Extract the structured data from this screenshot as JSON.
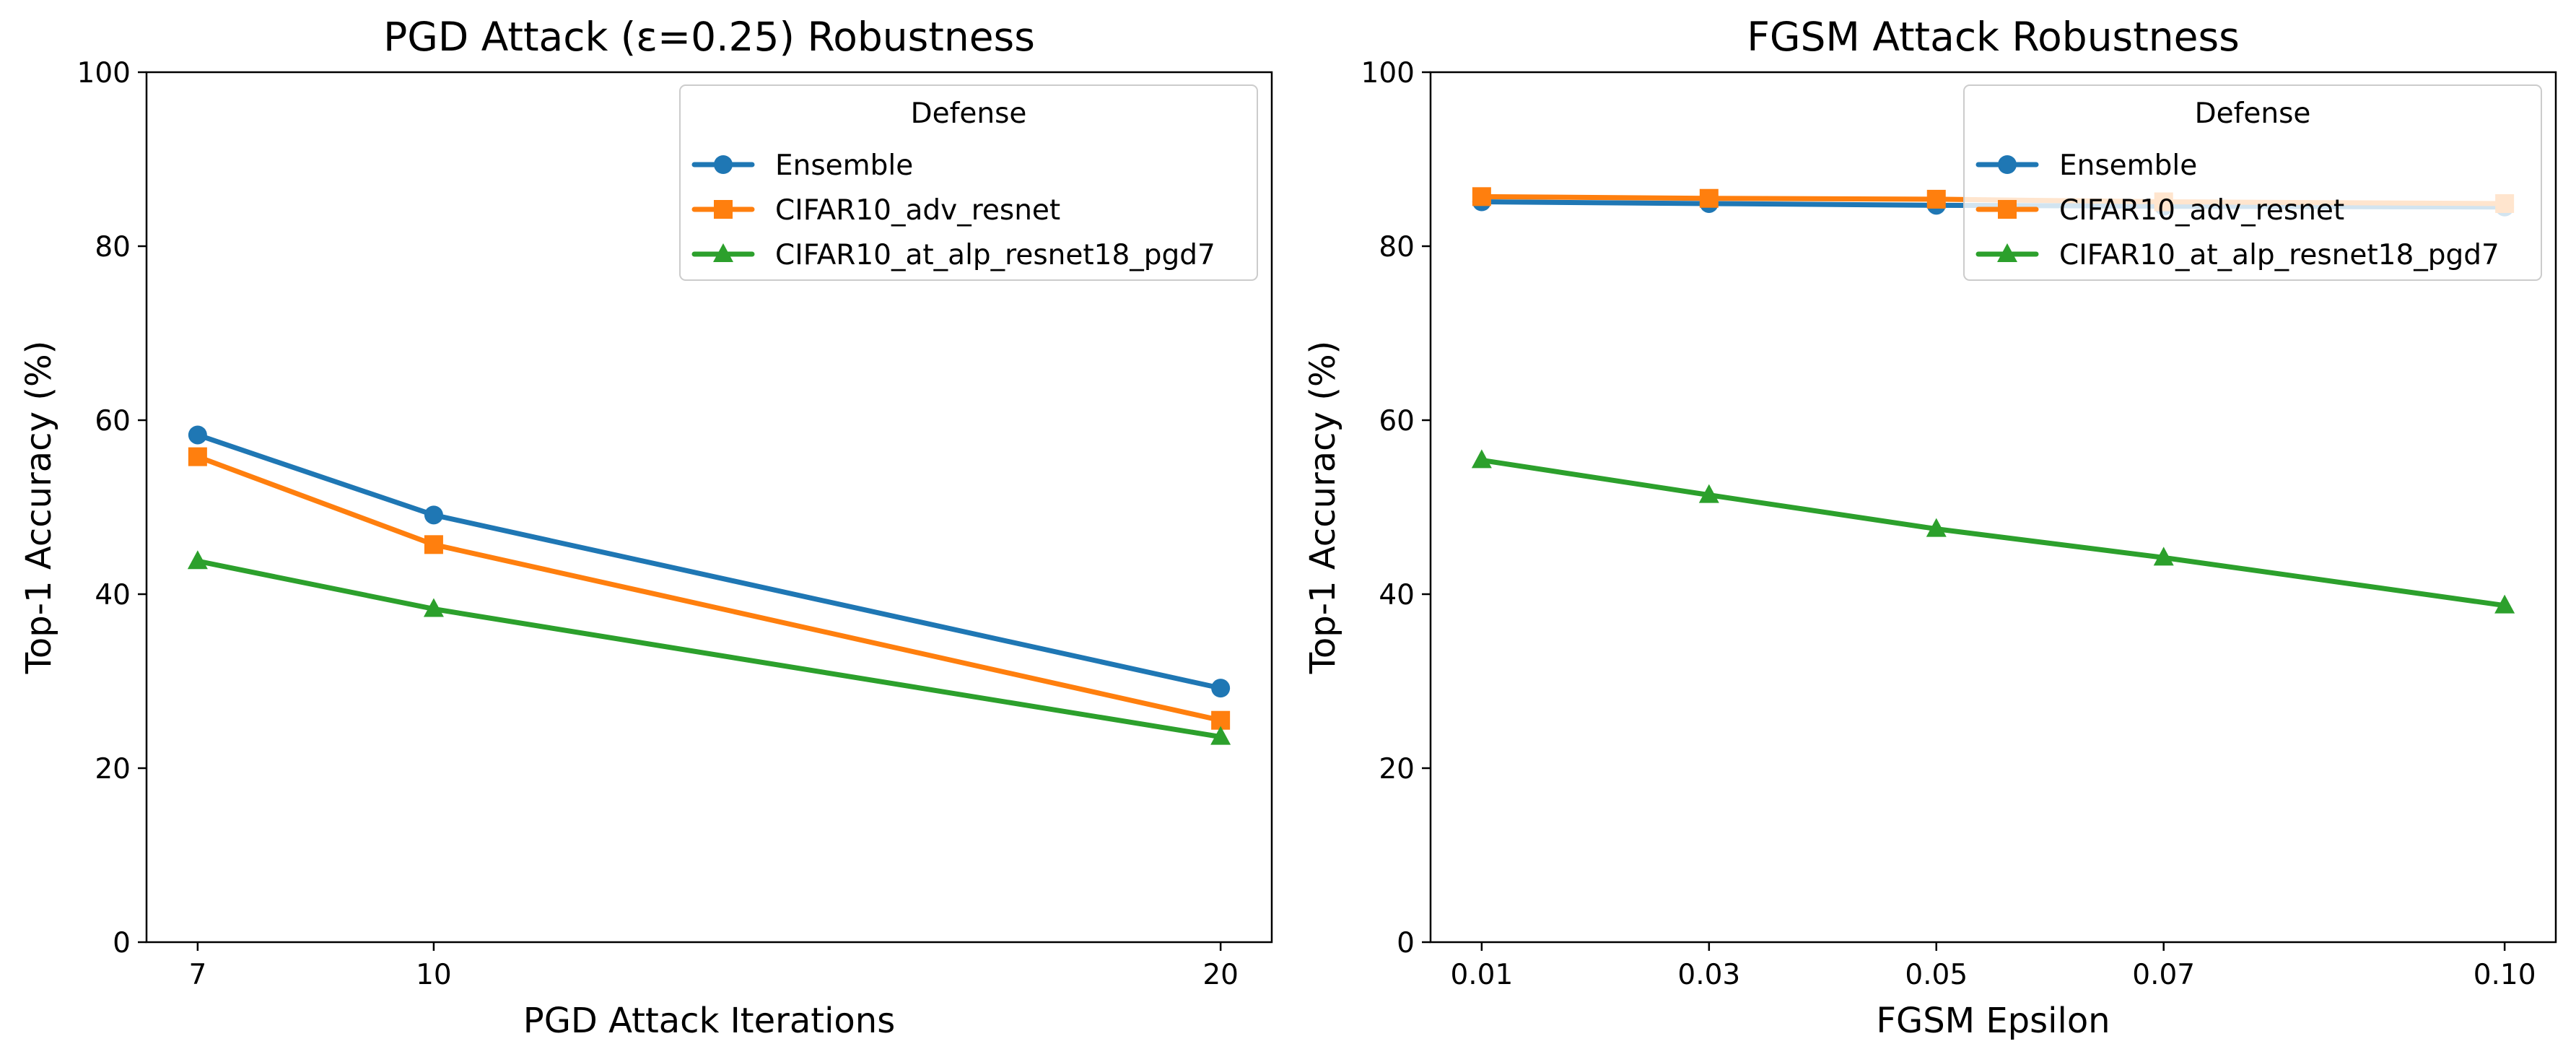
{
  "chart_data": [
    {
      "type": "line",
      "title": "PGD Attack (ε=0.25) Robustness",
      "xlabel": "PGD Attack Iterations",
      "ylabel": "Top-1 Accuracy (%)",
      "x": [
        7,
        10,
        20
      ],
      "x_tick_labels": [
        "7",
        "10",
        "20"
      ],
      "xlim": [
        6.35,
        20.65
      ],
      "ylim": [
        0,
        100
      ],
      "y_ticks": [
        0,
        20,
        40,
        60,
        80,
        100
      ],
      "grid": false,
      "legend": {
        "title": "Defense",
        "placement": "top-right"
      },
      "series": [
        {
          "name": "Ensemble",
          "color": "#1f77b4",
          "marker": "circle",
          "values": [
            58.3,
            49.1,
            29.2
          ]
        },
        {
          "name": "CIFAR10_adv_resnet",
          "color": "#ff7f0e",
          "marker": "square",
          "values": [
            55.8,
            45.7,
            25.5
          ]
        },
        {
          "name": "CIFAR10_at_alp_resnet18_pgd7",
          "color": "#2ca02c",
          "marker": "triangle",
          "values": [
            43.8,
            38.3,
            23.6
          ]
        }
      ]
    },
    {
      "type": "line",
      "title": "FGSM Attack Robustness",
      "xlabel": "FGSM Epsilon",
      "ylabel": "Top-1 Accuracy (%)",
      "x": [
        0.01,
        0.03,
        0.05,
        0.07,
        0.1
      ],
      "x_tick_labels": [
        "0.01",
        "0.03",
        "0.05",
        "0.07",
        "0.10"
      ],
      "xlim": [
        0.0055,
        0.1045
      ],
      "ylim": [
        0,
        100
      ],
      "y_ticks": [
        0,
        20,
        40,
        60,
        80,
        100
      ],
      "grid": false,
      "legend": {
        "title": "Defense",
        "placement": "top-right"
      },
      "series": [
        {
          "name": "Ensemble",
          "color": "#1f77b4",
          "marker": "circle",
          "values": [
            85.1,
            84.9,
            84.7,
            84.6,
            84.5
          ]
        },
        {
          "name": "CIFAR10_adv_resnet",
          "color": "#ff7f0e",
          "marker": "square",
          "values": [
            85.7,
            85.5,
            85.4,
            85.1,
            84.9
          ]
        },
        {
          "name": "CIFAR10_at_alp_resnet18_pgd7",
          "color": "#2ca02c",
          "marker": "triangle",
          "values": [
            55.4,
            51.4,
            47.5,
            44.2,
            38.7
          ]
        }
      ]
    }
  ]
}
